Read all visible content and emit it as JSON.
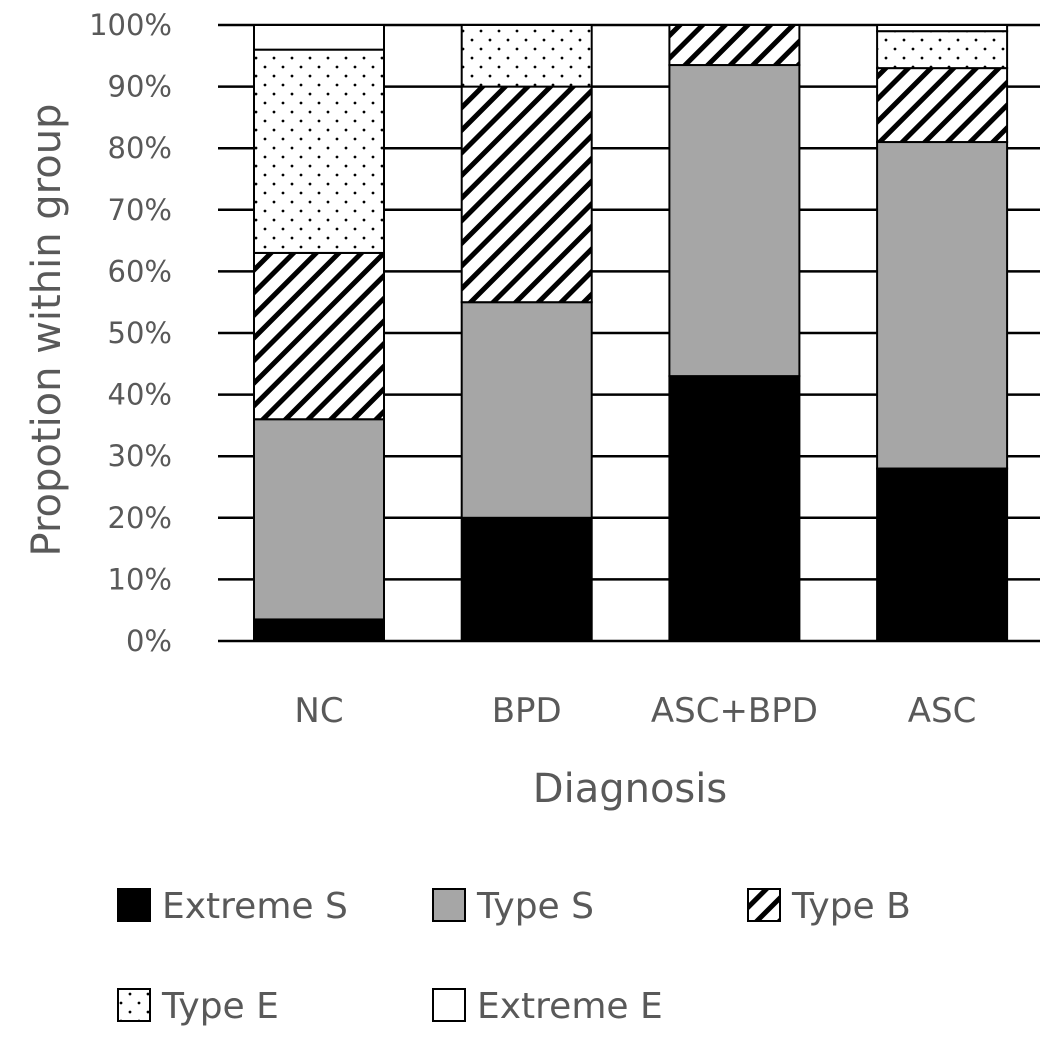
{
  "chart_data": {
    "type": "bar",
    "stacked": true,
    "title": "",
    "xlabel": "Diagnosis",
    "ylabel": "Propotion within group",
    "ylim": [
      0,
      100
    ],
    "yticks": [
      "0%",
      "10%",
      "20%",
      "30%",
      "40%",
      "50%",
      "60%",
      "70%",
      "80%",
      "90%",
      "100%"
    ],
    "grid": true,
    "legend_position": "bottom",
    "categories": [
      "NC",
      "BPD",
      "ASC+BPD",
      "ASC"
    ],
    "series": [
      {
        "name": "Extreme S",
        "fill": "solid-black",
        "values": [
          3.5,
          20,
          43,
          28
        ]
      },
      {
        "name": "Type S",
        "fill": "solid-gray",
        "values": [
          32.5,
          35,
          50.5,
          53
        ]
      },
      {
        "name": "Type B",
        "fill": "diagonal-hatch",
        "values": [
          27,
          35,
          6.5,
          12
        ]
      },
      {
        "name": "Type E",
        "fill": "dotted",
        "values": [
          33,
          10,
          0,
          6
        ]
      },
      {
        "name": "Extreme E",
        "fill": "white",
        "values": [
          4,
          0,
          0,
          1
        ]
      }
    ],
    "colors": {
      "black": "#000000",
      "gray": "#a6a6a6",
      "text": "#595959",
      "white": "#ffffff"
    }
  }
}
